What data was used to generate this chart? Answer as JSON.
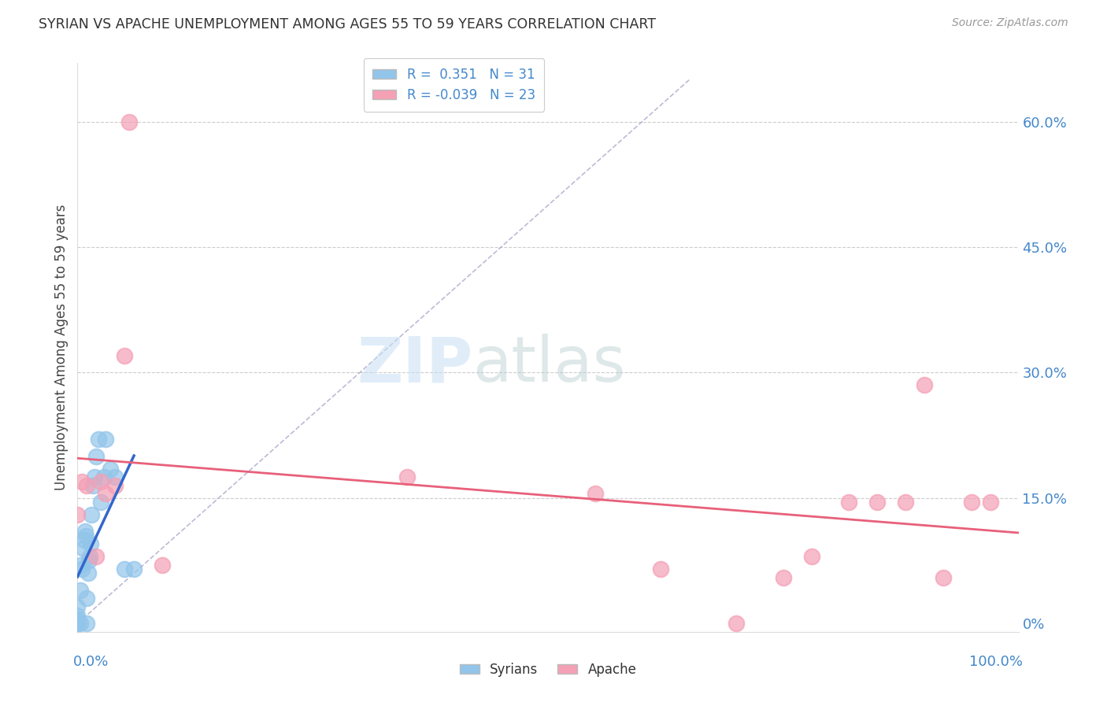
{
  "title": "SYRIAN VS APACHE UNEMPLOYMENT AMONG AGES 55 TO 59 YEARS CORRELATION CHART",
  "source": "Source: ZipAtlas.com",
  "ylabel": "Unemployment Among Ages 55 to 59 years",
  "ytick_values": [
    0.0,
    0.15,
    0.3,
    0.45,
    0.6
  ],
  "ytick_labels": [
    "0%",
    "15.0%",
    "30.0%",
    "45.0%",
    "60.0%"
  ],
  "xlim": [
    0.0,
    1.0
  ],
  "ylim": [
    -0.01,
    0.67
  ],
  "legend_syrian": "R =  0.351   N = 31",
  "legend_apache": "R = -0.039   N = 23",
  "syrian_color": "#92C5EA",
  "apache_color": "#F4A0B5",
  "syrian_line_color": "#3366CC",
  "apache_line_color": "#E8607A",
  "syrian_points_x": [
    0.0,
    0.0,
    0.0,
    0.0,
    0.0,
    0.003,
    0.003,
    0.004,
    0.005,
    0.006,
    0.007,
    0.008,
    0.009,
    0.01,
    0.01,
    0.011,
    0.012,
    0.013,
    0.014,
    0.015,
    0.016,
    0.018,
    0.02,
    0.022,
    0.025,
    0.028,
    0.03,
    0.035,
    0.04,
    0.05,
    0.06
  ],
  "syrian_points_y": [
    0.0,
    0.0,
    0.005,
    0.01,
    0.02,
    0.0,
    0.04,
    0.07,
    0.065,
    0.09,
    0.1,
    0.11,
    0.105,
    0.0,
    0.03,
    0.06,
    0.075,
    0.08,
    0.095,
    0.13,
    0.165,
    0.175,
    0.2,
    0.22,
    0.145,
    0.175,
    0.22,
    0.185,
    0.175,
    0.065,
    0.065
  ],
  "apache_points_x": [
    0.0,
    0.005,
    0.01,
    0.02,
    0.025,
    0.03,
    0.04,
    0.05,
    0.055,
    0.09,
    0.35,
    0.55,
    0.62,
    0.7,
    0.75,
    0.78,
    0.82,
    0.85,
    0.88,
    0.9,
    0.92,
    0.95,
    0.97
  ],
  "apache_points_y": [
    0.13,
    0.17,
    0.165,
    0.08,
    0.17,
    0.155,
    0.165,
    0.32,
    0.6,
    0.07,
    0.175,
    0.155,
    0.065,
    0.0,
    0.055,
    0.08,
    0.145,
    0.145,
    0.145,
    0.285,
    0.055,
    0.145,
    0.145
  ],
  "diag_line_color": "#AAAACC",
  "grid_color": "#CCCCCC",
  "tick_label_color": "#4488CC",
  "title_color": "#333333",
  "source_color": "#999999"
}
